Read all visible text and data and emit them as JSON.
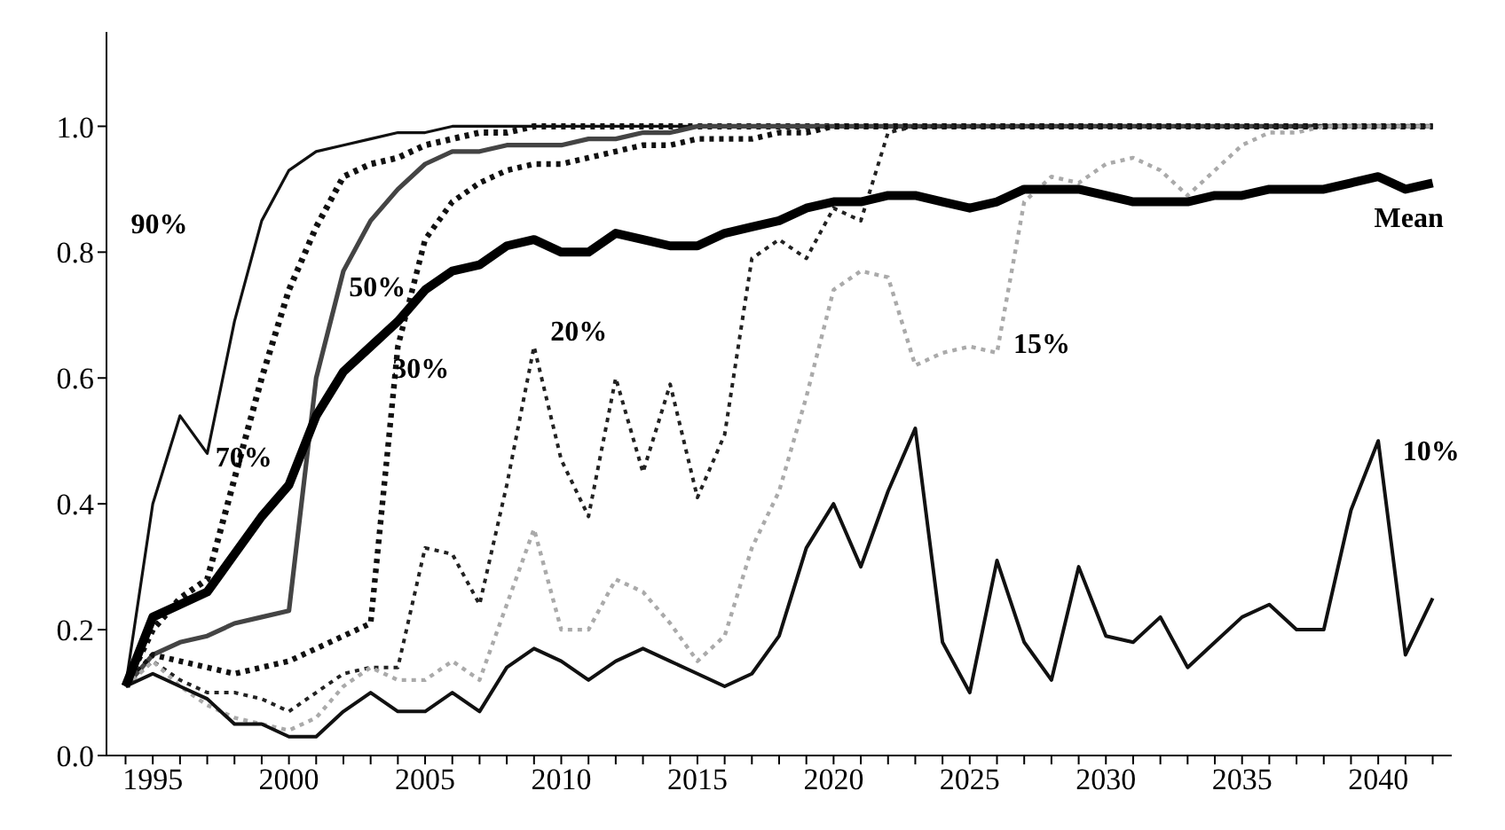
{
  "chart_data": {
    "type": "line",
    "x": [
      1994,
      1995,
      1996,
      1997,
      1998,
      1999,
      2000,
      2001,
      2002,
      2003,
      2004,
      2005,
      2006,
      2007,
      2008,
      2009,
      2010,
      2011,
      2012,
      2013,
      2014,
      2015,
      2016,
      2017,
      2018,
      2019,
      2020,
      2021,
      2022,
      2023,
      2024,
      2025,
      2026,
      2027,
      2028,
      2029,
      2030,
      2031,
      2032,
      2033,
      2034,
      2035,
      2036,
      2037,
      2038,
      2039,
      2040,
      2041,
      2042
    ],
    "series": [
      {
        "name": "90%",
        "color": "#111111",
        "line_style": "solid",
        "values": [
          0.11,
          0.4,
          0.54,
          0.48,
          0.69,
          0.85,
          0.93,
          0.96,
          0.97,
          0.98,
          0.99,
          0.99,
          1,
          1,
          1,
          1,
          1,
          1,
          1,
          1,
          1,
          1,
          1,
          1,
          1,
          1,
          1,
          1,
          1,
          1,
          1,
          1,
          1,
          1,
          1,
          1,
          1,
          1,
          1,
          1,
          1,
          1,
          1,
          1,
          1,
          1,
          1,
          1,
          1
        ]
      },
      {
        "name": "70%",
        "color": "#111111",
        "line_style": "dotted",
        "values": [
          0.11,
          0.2,
          0.25,
          0.28,
          0.44,
          0.6,
          0.74,
          0.84,
          0.92,
          0.94,
          0.95,
          0.97,
          0.98,
          0.99,
          0.99,
          1,
          1,
          1,
          1,
          1,
          1,
          1,
          1,
          1,
          1,
          1,
          1,
          1,
          1,
          1,
          1,
          1,
          1,
          1,
          1,
          1,
          1,
          1,
          1,
          1,
          1,
          1,
          1,
          1,
          1,
          1,
          1,
          1,
          1
        ]
      },
      {
        "name": "50%",
        "color": "#444444",
        "line_style": "solid",
        "values": [
          0.11,
          0.16,
          0.18,
          0.19,
          0.21,
          0.22,
          0.23,
          0.6,
          0.77,
          0.85,
          0.9,
          0.94,
          0.96,
          0.96,
          0.97,
          0.97,
          0.97,
          0.98,
          0.98,
          0.99,
          0.99,
          1,
          1,
          1,
          1,
          1,
          1,
          1,
          1,
          1,
          1,
          1,
          1,
          1,
          1,
          1,
          1,
          1,
          1,
          1,
          1,
          1,
          1,
          1,
          1,
          1,
          1,
          1,
          1
        ]
      },
      {
        "name": "30%",
        "color": "#111111",
        "line_style": "dotted",
        "values": [
          0.11,
          0.16,
          0.15,
          0.14,
          0.13,
          0.14,
          0.15,
          0.17,
          0.19,
          0.21,
          0.65,
          0.82,
          0.88,
          0.91,
          0.93,
          0.94,
          0.94,
          0.95,
          0.96,
          0.97,
          0.97,
          0.98,
          0.98,
          0.98,
          0.99,
          0.99,
          1,
          1,
          1,
          1,
          1,
          1,
          1,
          1,
          1,
          1,
          1,
          1,
          1,
          1,
          1,
          1,
          1,
          1,
          1,
          1,
          1,
          1,
          1
        ]
      },
      {
        "name": "20%",
        "color": "#222222",
        "line_style": "dotted",
        "values": [
          0.11,
          0.15,
          0.12,
          0.1,
          0.1,
          0.09,
          0.07,
          0.1,
          0.13,
          0.14,
          0.14,
          0.33,
          0.32,
          0.24,
          0.43,
          0.65,
          0.47,
          0.38,
          0.6,
          0.45,
          0.59,
          0.41,
          0.51,
          0.79,
          0.82,
          0.79,
          0.87,
          0.85,
          0.99,
          1,
          1,
          1,
          1,
          1,
          1,
          1,
          1,
          1,
          1,
          1,
          1,
          1,
          1,
          1,
          1,
          1,
          1,
          1,
          1
        ]
      },
      {
        "name": "15%",
        "color": "#aaaaaa",
        "line_style": "dotted",
        "values": [
          0.11,
          0.15,
          0.11,
          0.08,
          0.06,
          0.05,
          0.04,
          0.06,
          0.11,
          0.14,
          0.12,
          0.12,
          0.15,
          0.12,
          0.24,
          0.36,
          0.2,
          0.2,
          0.28,
          0.26,
          0.21,
          0.15,
          0.19,
          0.33,
          0.42,
          0.57,
          0.74,
          0.77,
          0.76,
          0.62,
          0.64,
          0.65,
          0.64,
          0.88,
          0.92,
          0.91,
          0.94,
          0.95,
          0.93,
          0.89,
          0.93,
          0.97,
          0.99,
          0.99,
          1,
          1,
          1,
          1,
          1
        ]
      },
      {
        "name": "10%",
        "color": "#111111",
        "line_style": "solid",
        "values": [
          0.11,
          0.13,
          0.11,
          0.09,
          0.05,
          0.05,
          0.03,
          0.03,
          0.07,
          0.1,
          0.07,
          0.07,
          0.1,
          0.07,
          0.14,
          0.17,
          0.15,
          0.12,
          0.15,
          0.17,
          0.15,
          0.13,
          0.11,
          0.13,
          0.19,
          0.33,
          0.4,
          0.3,
          0.42,
          0.52,
          0.18,
          0.1,
          0.31,
          0.18,
          0.12,
          0.3,
          0.19,
          0.18,
          0.22,
          0.14,
          0.18,
          0.22,
          0.24,
          0.2,
          0.2,
          0.39,
          0.5,
          0.16,
          0.25
        ]
      },
      {
        "name": "Mean",
        "color": "#000000",
        "line_style": "solid",
        "values": [
          0.11,
          0.22,
          0.24,
          0.26,
          0.32,
          0.38,
          0.43,
          0.54,
          0.61,
          0.65,
          0.69,
          0.74,
          0.77,
          0.78,
          0.81,
          0.82,
          0.8,
          0.8,
          0.83,
          0.82,
          0.81,
          0.81,
          0.83,
          0.84,
          0.85,
          0.87,
          0.88,
          0.88,
          0.89,
          0.89,
          0.88,
          0.87,
          0.88,
          0.9,
          0.9,
          0.9,
          0.89,
          0.88,
          0.88,
          0.88,
          0.89,
          0.89,
          0.9,
          0.9,
          0.9,
          0.91,
          0.92,
          0.9,
          0.91
        ]
      }
    ],
    "xlim": [
      1993.3,
      2042.7
    ],
    "xticks": [
      {
        "value": 1994,
        "label": null
      },
      1995,
      {
        "value": 1996,
        "label": null
      },
      {
        "value": 1997,
        "label": null
      },
      {
        "value": 1998,
        "label": null
      },
      {
        "value": 1999,
        "label": null
      },
      2000,
      {
        "value": 2001,
        "label": null
      },
      {
        "value": 2002,
        "label": null
      },
      {
        "value": 2003,
        "label": null
      },
      {
        "value": 2004,
        "label": null
      },
      2005,
      {
        "value": 2006,
        "label": null
      },
      {
        "value": 2007,
        "label": null
      },
      {
        "value": 2008,
        "label": null
      },
      {
        "value": 2009,
        "label": null
      },
      2010,
      {
        "value": 2011,
        "label": null
      },
      {
        "value": 2012,
        "label": null
      },
      {
        "value": 2013,
        "label": null
      },
      {
        "value": 2014,
        "label": null
      },
      2015,
      {
        "value": 2016,
        "label": null
      },
      {
        "value": 2017,
        "label": null
      },
      {
        "value": 2018,
        "label": null
      },
      {
        "value": 2019,
        "label": null
      },
      2020,
      {
        "value": 2021,
        "label": null
      },
      {
        "value": 2022,
        "label": null
      },
      {
        "value": 2023,
        "label": null
      },
      {
        "value": 2024,
        "label": null
      },
      2025,
      {
        "value": 2026,
        "label": null
      },
      {
        "value": 2027,
        "label": null
      },
      {
        "value": 2028,
        "label": null
      },
      {
        "value": 2029,
        "label": null
      },
      2030,
      {
        "value": 2031,
        "label": null
      },
      {
        "value": 2032,
        "label": null
      },
      {
        "value": 2033,
        "label": null
      },
      {
        "value": 2034,
        "label": null
      },
      2035,
      {
        "value": 2036,
        "label": null
      },
      {
        "value": 2037,
        "label": null
      },
      {
        "value": 2038,
        "label": null
      },
      {
        "value": 2039,
        "label": null
      },
      2040,
      {
        "value": 2041,
        "label": null
      },
      {
        "value": 2042,
        "label": null
      }
    ],
    "ylim": [
      0,
      1.15
    ],
    "yticks": [
      {
        "value": 0,
        "label": "0.0"
      },
      {
        "value": 0.2,
        "label": "0.2"
      },
      {
        "value": 0.4,
        "label": "0.4"
      },
      {
        "value": 0.6,
        "label": "0.6"
      },
      {
        "value": 0.8,
        "label": "0.8"
      },
      {
        "value": 1,
        "label": "1.0"
      }
    ],
    "grid": false,
    "legend": false,
    "marker": "none"
  }
}
